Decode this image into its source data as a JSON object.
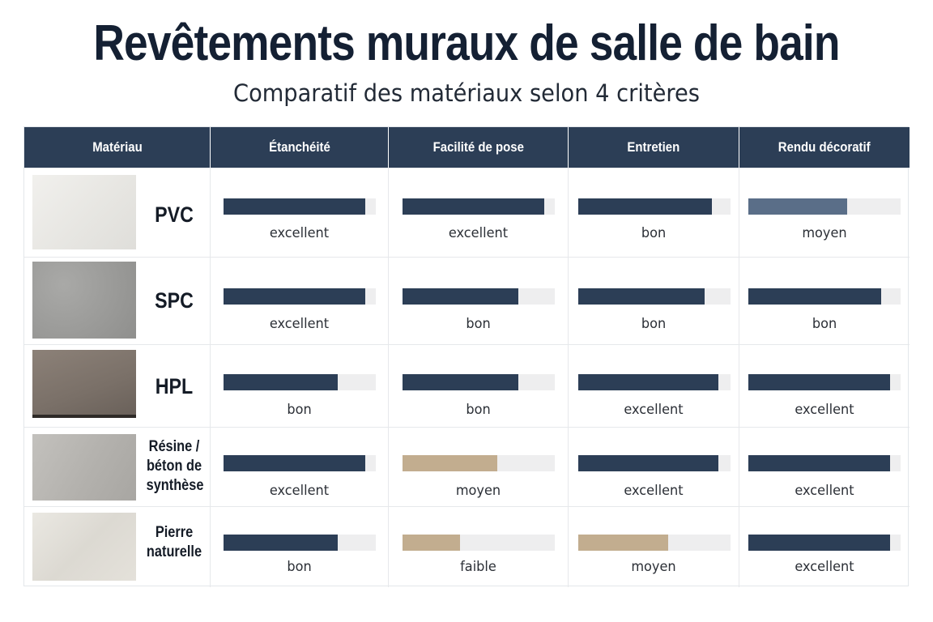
{
  "title": "Revêtements muraux de salle de bain",
  "subtitle": "Comparatif des matériaux selon 4 critères",
  "colors": {
    "header_bg": "#2c3e56",
    "bar_navy": "#2c3e56",
    "bar_slate": "#5a6e88",
    "bar_beige": "#c2ad8f",
    "track": "#eeeeef"
  },
  "chart_data": {
    "type": "table",
    "columns": [
      "Matériau",
      "Étanchéité",
      "Facilité de pose",
      "Entretien",
      "Rendu décoratif"
    ],
    "rows": [
      {
        "material": "PVC",
        "swatch": "pvc",
        "ratings": [
          {
            "label": "excellent",
            "level": 0.93,
            "color": "#2c3e56"
          },
          {
            "label": "excellent",
            "level": 0.93,
            "color": "#2c3e56"
          },
          {
            "label": "bon",
            "level": 0.88,
            "color": "#2c3e56"
          },
          {
            "label": "moyen",
            "level": 0.65,
            "color": "#5a6e88"
          }
        ]
      },
      {
        "material": "SPC",
        "swatch": "spc",
        "ratings": [
          {
            "label": "excellent",
            "level": 0.93,
            "color": "#2c3e56"
          },
          {
            "label": "bon",
            "level": 0.76,
            "color": "#2c3e56"
          },
          {
            "label": "bon",
            "level": 0.83,
            "color": "#2c3e56"
          },
          {
            "label": "bon",
            "level": 0.87,
            "color": "#2c3e56"
          }
        ]
      },
      {
        "material": "HPL",
        "swatch": "hpl",
        "ratings": [
          {
            "label": "bon",
            "level": 0.75,
            "color": "#2c3e56"
          },
          {
            "label": "bon",
            "level": 0.76,
            "color": "#2c3e56"
          },
          {
            "label": "excellent",
            "level": 0.92,
            "color": "#2c3e56"
          },
          {
            "label": "excellent",
            "level": 0.93,
            "color": "#2c3e56"
          }
        ]
      },
      {
        "material": "Résine / béton de synthèse",
        "material_lines": [
          "Résine /",
          "béton de",
          "synthèse"
        ],
        "swatch": "resine",
        "ratings": [
          {
            "label": "excellent",
            "level": 0.93,
            "color": "#2c3e56"
          },
          {
            "label": "moyen",
            "level": 0.62,
            "color": "#c2ad8f"
          },
          {
            "label": "excellent",
            "level": 0.92,
            "color": "#2c3e56"
          },
          {
            "label": "excellent",
            "level": 0.93,
            "color": "#2c3e56"
          }
        ]
      },
      {
        "material": "Pierre naturelle",
        "material_lines": [
          "Pierre",
          "naturelle"
        ],
        "swatch": "pierre",
        "ratings": [
          {
            "label": "bon",
            "level": 0.75,
            "color": "#2c3e56"
          },
          {
            "label": "faible",
            "level": 0.38,
            "color": "#c2ad8f"
          },
          {
            "label": "moyen",
            "level": 0.59,
            "color": "#c2ad8f"
          },
          {
            "label": "excellent",
            "level": 0.93,
            "color": "#2c3e56"
          }
        ]
      }
    ]
  }
}
